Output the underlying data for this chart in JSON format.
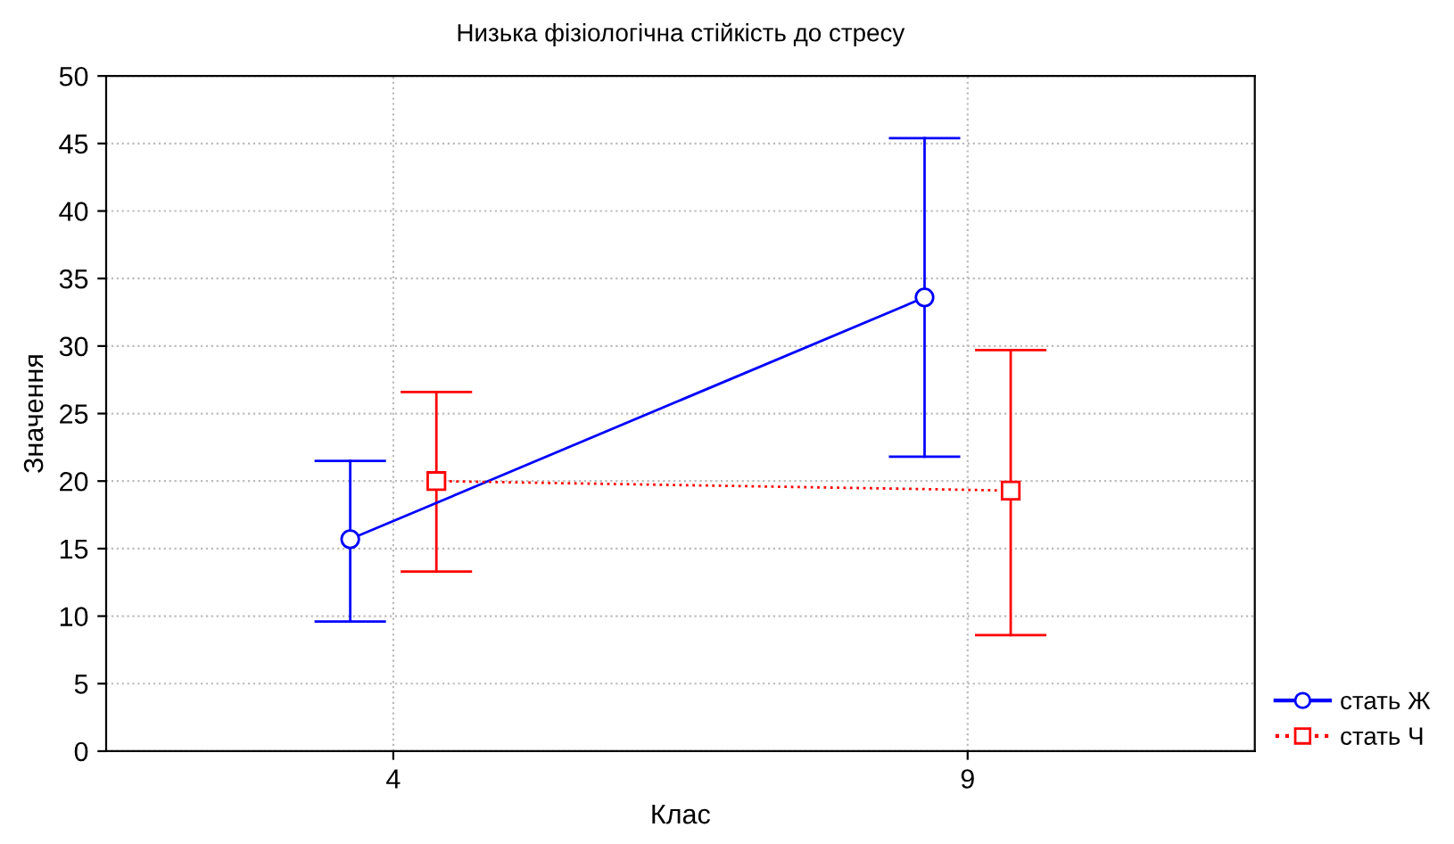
{
  "chart_data": {
    "type": "line",
    "title": "Низька фізіологічна стійкість до стресу",
    "xlabel": "Клас",
    "ylabel": "Значення",
    "categories": [
      "4",
      "9"
    ],
    "series": [
      {
        "name": "стать Ж",
        "color": "#0000ff",
        "values": [
          15.7,
          33.6
        ],
        "errors": [
          [
            9.6,
            21.5
          ],
          [
            21.8,
            45.4
          ]
        ],
        "marker": "circle",
        "line_style": "solid"
      },
      {
        "name": "стать Ч",
        "color": "#ff0000",
        "values": [
          20.0,
          19.3
        ],
        "errors": [
          [
            13.3,
            26.6
          ],
          [
            8.6,
            29.7
          ]
        ],
        "marker": "square",
        "line_style": "dotted"
      }
    ],
    "ylim": [
      0,
      50
    ],
    "yticks": [
      0,
      5,
      10,
      15,
      20,
      25,
      30,
      35,
      40,
      45,
      50
    ],
    "grid": true,
    "legend": "bottom right"
  }
}
